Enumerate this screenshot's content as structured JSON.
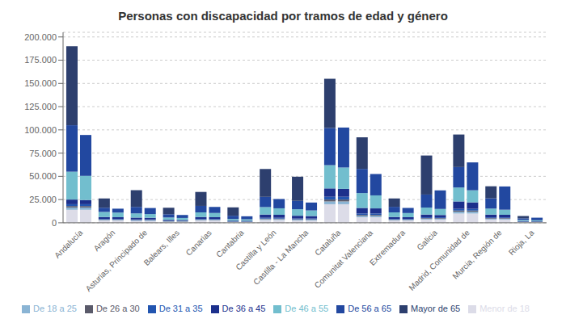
{
  "chart_data": {
    "type": "bar",
    "title": "Personas con discapacidad por tramos de edad y género",
    "stacked": true,
    "grid": true,
    "legend": "bottom",
    "categories": [
      "Andalucía",
      "Aragón",
      "Asturias, Principado de",
      "Balears, Illes",
      "Canarias",
      "Cantabria",
      "Castilla y León",
      "Castilla - La Mancha",
      "Cataluña",
      "Comunitat Valenciana",
      "Extremadura",
      "Galicia",
      "Madrid, Comunidad de",
      "Murcia, Región de",
      "Rioja, La"
    ],
    "ylim": [
      0,
      205000
    ],
    "yticks": [
      0,
      {
        "value": 25000,
        "label": "25.000"
      },
      {
        "value": 50000,
        "label": "50.000"
      },
      {
        "value": 75000,
        "label": "75.000"
      },
      {
        "value": 100000,
        "label": "100.000"
      },
      {
        "value": 125000,
        "label": "125.000"
      },
      {
        "value": 150000,
        "label": "150.000"
      },
      {
        "value": 175000,
        "label": "175.000"
      },
      {
        "value": 200000,
        "label": "200.000"
      }
    ],
    "series": [
      {
        "name": "Menor de 18",
        "color": "#dcdce8",
        "values": [
          14000,
          2500,
          2000,
          1000,
          2500,
          700,
          3000,
          2500,
          20000,
          6000,
          2500,
          3500,
          10000,
          3500,
          700
        ],
        "values2": [
          14000,
          2500,
          2000,
          1000,
          2500,
          700,
          3000,
          2500,
          20000,
          6000,
          2500,
          3500,
          10000,
          3500,
          700
        ]
      },
      {
        "name": "De 18 a 25",
        "color": "#8ab4d4",
        "values": [
          2500,
          700,
          600,
          400,
          700,
          300,
          900,
          800,
          3000,
          1500,
          700,
          900,
          2000,
          900,
          200
        ],
        "values2": [
          2500,
          700,
          600,
          400,
          700,
          300,
          900,
          800,
          3000,
          1500,
          700,
          900,
          2000,
          900,
          200
        ]
      },
      {
        "name": "De 26 a 30",
        "color": "#5a5a6a",
        "values": [
          1500,
          400,
          400,
          250,
          400,
          200,
          600,
          500,
          2000,
          1000,
          400,
          600,
          1200,
          600,
          120
        ],
        "values2": [
          1500,
          400,
          400,
          250,
          400,
          200,
          600,
          500,
          2000,
          1000,
          400,
          600,
          1200,
          600,
          120
        ]
      },
      {
        "name": "De 31 a 35",
        "color": "#2255b0",
        "values": [
          2000,
          600,
          600,
          350,
          600,
          300,
          900,
          800,
          3000,
          1500,
          600,
          900,
          1800,
          800,
          180
        ],
        "values2": [
          2000,
          600,
          600,
          350,
          600,
          300,
          900,
          800,
          3000,
          1500,
          600,
          900,
          1800,
          800,
          180
        ]
      },
      {
        "name": "De 36 a 45",
        "color": "#1c308c",
        "values": [
          5000,
          2000,
          2000,
          1200,
          2000,
          800,
          3500,
          3000,
          9000,
          6000,
          2000,
          3000,
          8000,
          3000,
          600
        ],
        "values2": [
          4500,
          1800,
          1800,
          1000,
          1800,
          700,
          3200,
          2700,
          8500,
          5500,
          1800,
          2500,
          7000,
          2800,
          500
        ]
      },
      {
        "name": "De 46 a 55",
        "color": "#72bece",
        "values": [
          30000,
          5500,
          4500,
          2500,
          5000,
          1800,
          8000,
          7000,
          25000,
          16000,
          5000,
          7500,
          15000,
          6500,
          1200
        ],
        "values2": [
          26000,
          5000,
          4000,
          2200,
          4500,
          1600,
          7000,
          6000,
          23000,
          14000,
          4500,
          6500,
          13000,
          5500,
          1000
        ]
      },
      {
        "name": "De 56 a 65",
        "color": "#2248a0",
        "values": [
          50000,
          4500,
          7000,
          3500,
          7000,
          3500,
          11000,
          9000,
          40000,
          26000,
          6000,
          14000,
          22000,
          11000,
          1800
        ],
        "values2": [
          44000,
          4200,
          6500,
          3200,
          6500,
          3200,
          10000,
          8500,
          43000,
          23000,
          5500,
          20000,
          30000,
          25000,
          2800
        ]
      },
      {
        "name": "Mayor de 65",
        "color": "#2d3f6e",
        "values": [
          85000,
          10000,
          18000,
          7000,
          15000,
          9000,
          30000,
          26000,
          53000,
          34000,
          9000,
          42000,
          35000,
          13000,
          2500
        ],
        "values2": [
          0,
          0,
          0,
          0,
          0,
          0,
          0,
          0,
          0,
          0,
          0,
          0,
          0,
          0,
          0
        ]
      }
    ]
  }
}
